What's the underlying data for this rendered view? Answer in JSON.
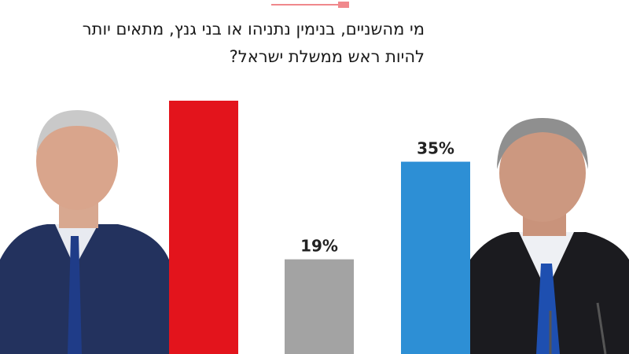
{
  "chart_data": {
    "type": "bar",
    "title": [
      "מי מהשניים, בנימין נתניהו או בני גנץ, מתאים יותר",
      "להיות ראש ממשלת ישראל?"
    ],
    "categories": [
      null,
      null,
      null
    ],
    "values": [
      45,
      19,
      35
    ],
    "value_labels": [
      null,
      "19%",
      "35%"
    ],
    "colors": [
      "#e3141c",
      "#a3a3a3",
      "#2d8fd5"
    ],
    "ylim": [
      0,
      45
    ]
  }
}
